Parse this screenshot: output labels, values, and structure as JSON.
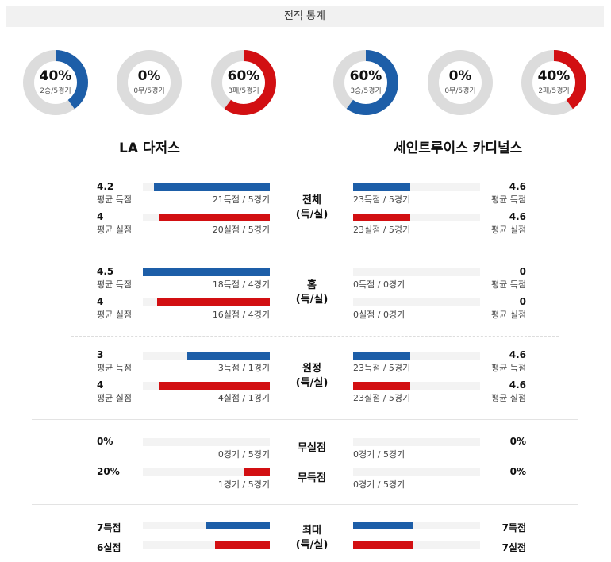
{
  "header": {
    "title": "전적 통계"
  },
  "donuts": [
    {
      "pct": "40%",
      "sub": "2승/5경기",
      "fraction": 0.4,
      "color": "#1d5ea8"
    },
    {
      "pct": "0%",
      "sub": "0무/5경기",
      "fraction": 0,
      "color": "#1d5ea8"
    },
    {
      "pct": "60%",
      "sub": "3패/5경기",
      "fraction": 0.6,
      "color": "#d20f12"
    },
    {
      "pct": "60%",
      "sub": "3승/5경기",
      "fraction": 0.6,
      "color": "#1d5ea8"
    },
    {
      "pct": "0%",
      "sub": "0무/5경기",
      "fraction": 0,
      "color": "#1d5ea8"
    },
    {
      "pct": "40%",
      "sub": "2패/5경기",
      "fraction": 0.4,
      "color": "#d20f12"
    }
  ],
  "teams": {
    "left": "LA 다저스",
    "right": "세인트루이스 카디널스"
  },
  "sections": [
    {
      "title": "전체",
      "title2": "(득/실)",
      "rows": [
        {
          "l_num": "4.2",
          "l_lbl": "평균 득점",
          "l_bar": "21득점 / 5경기",
          "l_frac": 0.91,
          "r_num": "4.6",
          "r_lbl": "평균 득점",
          "r_bar": "23득점 / 5경기",
          "r_frac": 1.0,
          "color": "blue"
        },
        {
          "l_num": "4",
          "l_lbl": "평균 실점",
          "l_bar": "20실점 / 5경기",
          "l_frac": 0.87,
          "r_num": "4.6",
          "r_lbl": "평균 실점",
          "r_bar": "23실점 / 5경기",
          "r_frac": 1.0,
          "color": "red"
        }
      ]
    },
    {
      "title": "홈",
      "title2": "(득/실)",
      "rows": [
        {
          "l_num": "4.5",
          "l_lbl": "평균 득점",
          "l_bar": "18득점 / 4경기",
          "l_frac": 1.0,
          "r_num": "0",
          "r_lbl": "평균 득점",
          "r_bar": "0득점 / 0경기",
          "r_frac": 0,
          "color": "blue"
        },
        {
          "l_num": "4",
          "l_lbl": "평균 실점",
          "l_bar": "16실점 / 4경기",
          "l_frac": 0.89,
          "r_num": "0",
          "r_lbl": "평균 실점",
          "r_bar": "0실점 / 0경기",
          "r_frac": 0,
          "color": "red"
        }
      ]
    },
    {
      "title": "원정",
      "title2": "(득/실)",
      "rows": [
        {
          "l_num": "3",
          "l_lbl": "평균 득점",
          "l_bar": "3득점 / 1경기",
          "l_frac": 0.65,
          "r_num": "4.6",
          "r_lbl": "평균 득점",
          "r_bar": "23득점 / 5경기",
          "r_frac": 1.0,
          "color": "blue"
        },
        {
          "l_num": "4",
          "l_lbl": "평균 실점",
          "l_bar": "4실점 / 1경기",
          "l_frac": 0.87,
          "r_num": "4.6",
          "r_lbl": "평균 실점",
          "r_bar": "23실점 / 5경기",
          "r_frac": 1.0,
          "color": "red"
        }
      ]
    }
  ],
  "shutout": {
    "rows": [
      {
        "title": "무실점",
        "l_num": "0%",
        "l_bar": "0경기 / 5경기",
        "l_frac": 0,
        "r_num": "0%",
        "r_bar": "0경기 / 5경기",
        "r_frac": 0,
        "color": "blue"
      },
      {
        "title": "무득점",
        "l_num": "20%",
        "l_bar": "1경기 / 5경기",
        "l_frac": 0.2,
        "r_num": "0%",
        "r_bar": "0경기 / 5경기",
        "r_frac": 0,
        "color": "red"
      }
    ]
  },
  "max": {
    "title": "최대",
    "title2": "(득/실)",
    "rows": [
      {
        "l_num": "7득점",
        "l_frac": 0.5,
        "r_num": "7득점",
        "r_frac": 0.5,
        "color": "blue"
      },
      {
        "l_num": "6실점",
        "l_frac": 0.43,
        "r_num": "7실점",
        "r_frac": 0.5,
        "color": "red"
      }
    ]
  },
  "colors": {
    "blue": "#1d5ea8",
    "red": "#d20f12",
    "track": "#dcdcdc"
  }
}
